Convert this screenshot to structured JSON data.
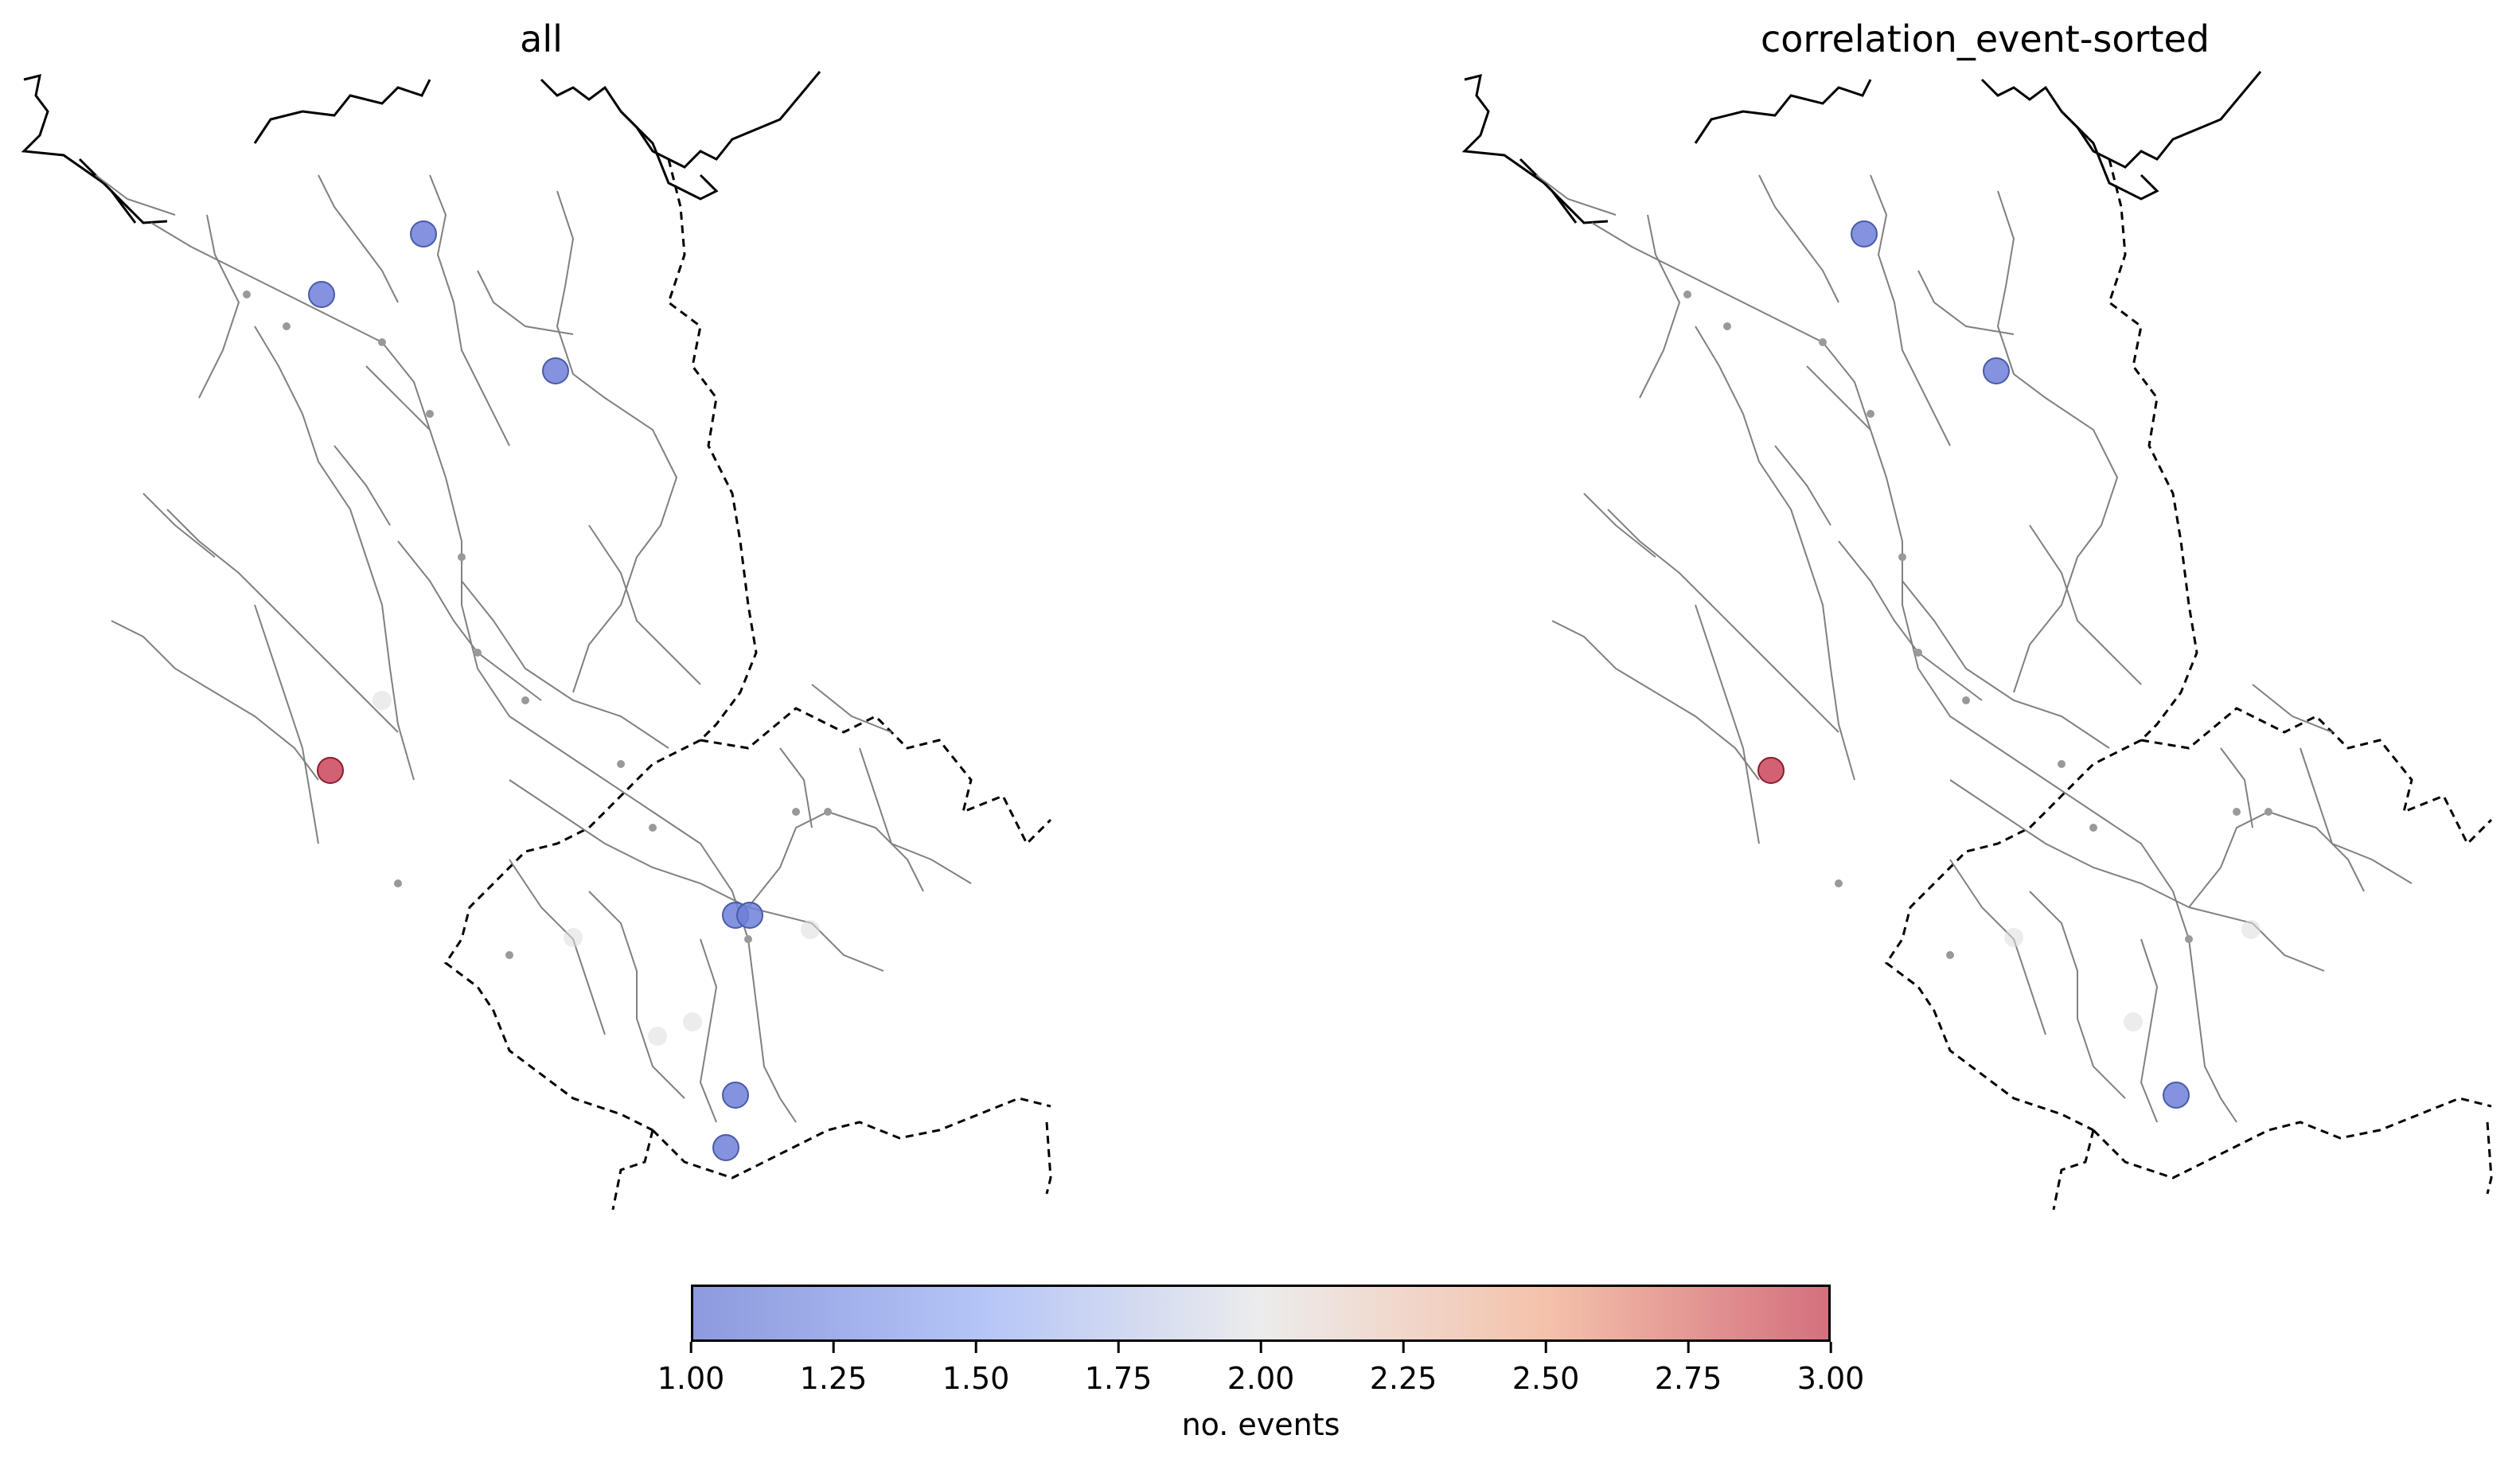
{
  "panels": [
    {
      "title": "all"
    },
    {
      "title": "correlation_event-sorted"
    }
  ],
  "colorbar": {
    "label": "no. events",
    "ticks": [
      "1.00",
      "1.25",
      "1.50",
      "1.75",
      "2.00",
      "2.25",
      "2.50",
      "2.75",
      "3.00"
    ],
    "range": [
      1.0,
      3.0
    ],
    "colormap": "coolwarm",
    "colors": {
      "low": "#8d9ade",
      "mid": "#ececec",
      "high": "#d4707e"
    }
  },
  "map_data": {
    "panel_all_stations": [
      {
        "events": 1,
        "color": "#6f80d8"
      },
      {
        "events": 1,
        "color": "#6f80d8"
      },
      {
        "events": 1,
        "color": "#6f80d8"
      },
      {
        "events": 3,
        "color": "#c9455a"
      },
      {
        "events": 1,
        "color": "#6f80d8"
      },
      {
        "events": 1,
        "color": "#6f80d8"
      },
      {
        "events": 1,
        "color": "#6f80d8"
      },
      {
        "events": 1,
        "color": "#6f80d8"
      },
      {
        "events": 2,
        "color": "#dcdcdc"
      },
      {
        "events": 2,
        "color": "#dcdcdc"
      },
      {
        "events": 2,
        "color": "#dcdcdc"
      },
      {
        "events": 2,
        "color": "#dcdcdc"
      },
      {
        "events": 2,
        "color": "#dcdcdc"
      }
    ],
    "panel_corr_stations": [
      {
        "events": 1,
        "color": "#6f80d8"
      },
      {
        "events": 1,
        "color": "#6f80d8"
      },
      {
        "events": 3,
        "color": "#c9455a"
      },
      {
        "events": 1,
        "color": "#6f80d8"
      },
      {
        "events": 2,
        "color": "#dcdcdc"
      },
      {
        "events": 2,
        "color": "#dcdcdc"
      },
      {
        "events": 2,
        "color": "#dcdcdc"
      }
    ],
    "river_color": "#808080",
    "border_color": "#000000",
    "coastline_color": "#000000"
  }
}
